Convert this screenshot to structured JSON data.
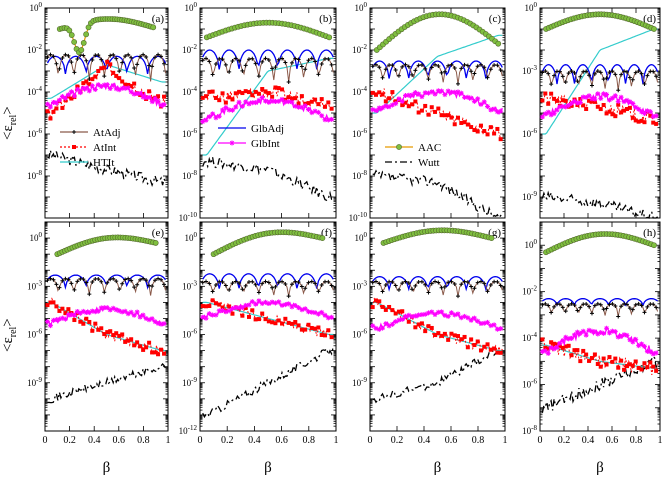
{
  "figure": {
    "ylabel_main": "<ε",
    "ylabel_sub": "rel",
    "ylabel_end": ">",
    "xlabel": "β"
  },
  "legend": [
    {
      "panel": "a",
      "label": "AtAdj",
      "color": "#8b5a4a",
      "dash": "solid",
      "marker": "plus"
    },
    {
      "panel": "a",
      "label": "AtInt",
      "color": "#ff0000",
      "dash": "dotted",
      "marker": "square"
    },
    {
      "panel": "a",
      "label": "HTIt",
      "color": "#33cccc",
      "dash": "solid",
      "marker": "none"
    },
    {
      "panel": "b",
      "label": "GlbAdj",
      "color": "#0000ee",
      "dash": "solid",
      "marker": "none"
    },
    {
      "panel": "b",
      "label": "GlbInt",
      "color": "#ff00ff",
      "dash": "solid",
      "marker": "star"
    },
    {
      "panel": "c",
      "label": "AAC",
      "color": "#e69a00",
      "dash": "solid",
      "marker": "circle"
    },
    {
      "panel": "c",
      "label": "Wutt",
      "color": "#000000",
      "dash": "dashdot",
      "marker": "none"
    }
  ],
  "chart_data": [
    {
      "panel": "a",
      "label": "(a)",
      "type": "line",
      "yscale": "log",
      "xlim": [
        0,
        1
      ],
      "ylim": [
        1e-10,
        1
      ],
      "xticks": [
        "0",
        "0.2",
        "0.4",
        "0.6",
        "0.8",
        "1"
      ],
      "yticks": [
        {
          "v": 1,
          "t": "10^0"
        },
        {
          "v": 0.01,
          "t": "10^-2"
        },
        {
          "v": 0.0001,
          "t": "10^-4"
        },
        {
          "v": 1e-06,
          "t": "10^-6"
        },
        {
          "v": 1e-08,
          "t": "10^-8"
        }
      ],
      "series": {
        "AAC": {
          "x": [
            0.12,
            0.88
          ],
          "y": [
            0.1,
            0.12
          ],
          "dip": [
            0.28,
            0.004
          ],
          "peak": [
            0.5,
            0.3
          ]
        },
        "GlbAdj": {
          "base": 0.005,
          "osc": 6,
          "min": 0.0004
        },
        "AtAdj": {
          "base": 0.006,
          "osc": 8,
          "min": 0.0001
        },
        "AtInt": {
          "x": [
            0.05,
            0.5,
            0.95
          ],
          "y": [
            1e-05,
            0.0015,
            3e-05
          ]
        },
        "HTIt": {
          "x": [
            0.05,
            0.5,
            0.95
          ],
          "y": [
            5e-05,
            0.002,
            0.0003
          ]
        },
        "GlbInt": {
          "x": [
            0.05,
            0.5,
            0.95
          ],
          "y": [
            0.0001,
            0.0001,
            0.0001
          ]
        },
        "Wutt": {
          "x": [
            0.05,
            0.5,
            0.95
          ],
          "y": [
            1e-07,
            2e-08,
            5e-09
          ]
        }
      }
    },
    {
      "panel": "b",
      "label": "(b)",
      "type": "line",
      "yscale": "log",
      "xlim": [
        0,
        1
      ],
      "ylim": [
        1e-10,
        1
      ],
      "xticks": [
        "0",
        "0.2",
        "0.4",
        "0.6",
        "0.8",
        "1"
      ],
      "yticks": [
        {
          "v": 1,
          "t": "10^0"
        },
        {
          "v": 0.01,
          "t": "10^-2"
        },
        {
          "v": 0.0001,
          "t": "10^-4"
        },
        {
          "v": 1e-06,
          "t": "10^-6"
        },
        {
          "v": 1e-08,
          "t": "10^-8"
        },
        {
          "v": 1e-10,
          "t": "10^-10"
        }
      ],
      "series": {
        "AAC": {
          "x": [
            0.05,
            0.95
          ],
          "y": [
            0.04,
            0.04
          ],
          "dip": [
            0,
            0
          ],
          "peak": [
            0.5,
            0.2
          ]
        },
        "GlbAdj": {
          "base": 0.01,
          "osc": 7,
          "min": 0.0005
        },
        "AtAdj": {
          "base": 0.004,
          "osc": 9,
          "min": 0.0001
        },
        "AtInt": {
          "x": [
            0.05,
            0.5,
            0.95
          ],
          "y": [
            5e-05,
            0.0001,
            3e-05
          ]
        },
        "HTIt": {
          "x": [
            0.05,
            0.5,
            0.95
          ],
          "y": [
            1e-07,
            0.001,
            0.004
          ]
        },
        "GlbInt": {
          "x": [
            0.05,
            0.5,
            0.95
          ],
          "y": [
            2e-05,
            2e-05,
            2e-05
          ]
        },
        "Wutt": {
          "x": [
            0.05,
            0.5,
            0.95
          ],
          "y": [
            5e-08,
            2e-08,
            1e-09
          ]
        }
      }
    },
    {
      "panel": "c",
      "label": "(c)",
      "type": "line",
      "yscale": "log",
      "xlim": [
        0,
        1
      ],
      "ylim": [
        1e-10,
        1
      ],
      "xticks": [
        "0",
        "0.2",
        "0.4",
        "0.6",
        "0.8",
        "1"
      ],
      "yticks": [
        {
          "v": 1,
          "t": "10^0"
        },
        {
          "v": 0.01,
          "t": "10^-2"
        },
        {
          "v": 0.0001,
          "t": "10^-4"
        },
        {
          "v": 1e-06,
          "t": "10^-6"
        },
        {
          "v": 1e-08,
          "t": "10^-8"
        },
        {
          "v": 1e-10,
          "t": "10^-10"
        }
      ],
      "series": {
        "AAC": {
          "x": [
            0.05,
            0.95
          ],
          "y": [
            0.01,
            0.02
          ],
          "dip": [
            0,
            0
          ],
          "peak": [
            0.5,
            0.5
          ]
        },
        "GlbAdj": {
          "base": 0.003,
          "osc": 7,
          "min": 0.0002
        },
        "AtAdj": {
          "base": 0.002,
          "osc": 9,
          "min": 0.0001
        },
        "AtInt": {
          "x": [
            0.05,
            0.5,
            0.95
          ],
          "y": [
            0.0001,
            1e-05,
            1e-06
          ]
        },
        "HTIt": {
          "x": [
            0.05,
            0.5,
            0.95
          ],
          "y": [
            1e-05,
            0.005,
            0.05
          ]
        },
        "GlbInt": {
          "x": [
            0.05,
            0.5,
            0.95
          ],
          "y": [
            5e-05,
            5e-05,
            5e-05
          ]
        },
        "Wutt": {
          "x": [
            0.05,
            0.5,
            0.95
          ],
          "y": [
            1e-08,
            5e-09,
            1e-10
          ]
        }
      }
    },
    {
      "panel": "d",
      "label": "(d)",
      "type": "line",
      "yscale": "log",
      "xlim": [
        0,
        1
      ],
      "ylim": [
        1e-10,
        1
      ],
      "xticks": [
        "0",
        "0.2",
        "0.4",
        "0.6",
        "0.8",
        "1"
      ],
      "yticks": [
        {
          "v": 1,
          "t": "10^0"
        },
        {
          "v": 0.001,
          "t": "10^-3"
        },
        {
          "v": 1e-06,
          "t": "10^-6"
        },
        {
          "v": 1e-09,
          "t": "10^-9"
        }
      ],
      "series": {
        "AAC": {
          "x": [
            0.05,
            0.95
          ],
          "y": [
            0.1,
            0.1
          ],
          "dip": [
            0,
            0
          ],
          "peak": [
            0.5,
            0.5
          ]
        },
        "GlbAdj": {
          "base": 0.002,
          "osc": 7,
          "min": 0.0001
        },
        "AtAdj": {
          "base": 0.001,
          "osc": 9,
          "min": 5e-05
        },
        "AtInt": {
          "x": [
            0.05,
            0.5,
            0.95
          ],
          "y": [
            5e-05,
            2e-05,
            5e-06
          ]
        },
        "HTIt": {
          "x": [
            0.05,
            0.5,
            0.95
          ],
          "y": [
            1e-06,
            0.01,
            0.1
          ]
        },
        "GlbInt": {
          "x": [
            0.05,
            0.5,
            0.95
          ],
          "y": [
            3e-05,
            3e-05,
            3e-05
          ]
        },
        "Wutt": {
          "x": [
            0.05,
            0.5,
            0.95
          ],
          "y": [
            1e-09,
            5e-10,
            1e-10
          ]
        }
      }
    },
    {
      "panel": "e",
      "label": "(e)",
      "type": "line",
      "yscale": "log",
      "xlim": [
        0,
        1
      ],
      "ylim": [
        1e-12,
        10
      ],
      "xticks": [
        "0",
        "0.2",
        "0.4",
        "0.6",
        "0.8",
        "1"
      ],
      "yticks": [
        {
          "v": 1,
          "t": "10^0"
        },
        {
          "v": 0.001,
          "t": "10^-3"
        },
        {
          "v": 1e-06,
          "t": "10^-6"
        },
        {
          "v": 1e-09,
          "t": "10^-9"
        }
      ],
      "series": {
        "AAC": {
          "x": [
            0.1,
            0.9
          ],
          "y": [
            0.1,
            0.5
          ],
          "dip": [
            0,
            0
          ],
          "peak": [
            0.5,
            1
          ]
        },
        "GlbAdj": {
          "base": 0.005,
          "osc": 6,
          "min": 0.0005
        },
        "AtAdj": {
          "base": 0.003,
          "osc": 8,
          "min": 0.0001
        },
        "AtInt": {
          "x": [
            0.05,
            0.5,
            0.95
          ],
          "y": [
            0.0001,
            1e-06,
            1e-07
          ]
        },
        "HTIt": {
          "x": [
            0.05,
            0.5,
            0.95
          ],
          "y": [
            0.0001,
            1e-06,
            1e-07
          ]
        },
        "GlbInt": {
          "x": [
            0.05,
            0.5,
            0.95
          ],
          "y": [
            2e-05,
            2e-05,
            2e-05
          ]
        },
        "Wutt": {
          "x": [
            0.05,
            0.5,
            0.95
          ],
          "y": [
            1e-10,
            1e-09,
            1e-08
          ]
        }
      }
    },
    {
      "panel": "f",
      "label": "(f)",
      "type": "line",
      "yscale": "log",
      "xlim": [
        0,
        1
      ],
      "ylim": [
        1e-12,
        10
      ],
      "xticks": [
        "0",
        "0.2",
        "0.4",
        "0.6",
        "0.8",
        "1"
      ],
      "yticks": [
        {
          "v": 1,
          "t": "10^0"
        },
        {
          "v": 0.001,
          "t": "10^-3"
        },
        {
          "v": 1e-06,
          "t": "10^-6"
        },
        {
          "v": 1e-09,
          "t": "10^-9"
        },
        {
          "v": 1e-12,
          "t": "10^-12"
        }
      ],
      "series": {
        "AAC": {
          "x": [
            0.1,
            0.9
          ],
          "y": [
            0.1,
            1
          ],
          "dip": [
            0,
            0
          ],
          "peak": [
            0.5,
            2
          ]
        },
        "GlbAdj": {
          "base": 0.006,
          "osc": 7,
          "min": 0.0003
        },
        "AtAdj": {
          "base": 0.002,
          "osc": 9,
          "min": 0.0001
        },
        "AtInt": {
          "x": [
            0.05,
            0.5,
            0.95
          ],
          "y": [
            0.0001,
            1e-05,
            1e-06
          ]
        },
        "HTIt": {
          "x": [
            0.05,
            0.5,
            0.95
          ],
          "y": [
            0.0001,
            1e-05,
            1e-06
          ]
        },
        "GlbInt": {
          "x": [
            0.05,
            0.5,
            0.95
          ],
          "y": [
            5e-05,
            5e-05,
            5e-05
          ]
        },
        "Wutt": {
          "x": [
            0.05,
            0.5,
            0.95
          ],
          "y": [
            1e-11,
            1e-09,
            1e-07
          ]
        }
      }
    },
    {
      "panel": "g",
      "label": "(g)",
      "type": "line",
      "yscale": "log",
      "xlim": [
        0,
        1
      ],
      "ylim": [
        1e-12,
        10
      ],
      "xticks": [
        "0",
        "0.2",
        "0.4",
        "0.6",
        "0.8",
        "1"
      ],
      "yticks": [
        {
          "v": 1,
          "t": "10^0"
        },
        {
          "v": 0.001,
          "t": "10^-3"
        },
        {
          "v": 1e-06,
          "t": "10^-6"
        },
        {
          "v": 1e-09,
          "t": "10^-9"
        }
      ],
      "series": {
        "AAC": {
          "x": [
            0.1,
            0.9
          ],
          "y": [
            0.5,
            1
          ],
          "dip": [
            0,
            0
          ],
          "peak": [
            0.5,
            3
          ]
        },
        "GlbAdj": {
          "base": 0.004,
          "osc": 7,
          "min": 0.0003
        },
        "AtAdj": {
          "base": 0.002,
          "osc": 9,
          "min": 0.0001
        },
        "AtInt": {
          "x": [
            0.05,
            0.5,
            0.95
          ],
          "y": [
            0.0001,
            1e-06,
            1e-07
          ]
        },
        "HTIt": {
          "x": [
            0.05,
            0.5,
            0.95
          ],
          "y": [
            0.0001,
            1e-06,
            1e-07
          ]
        },
        "GlbInt": {
          "x": [
            0.05,
            0.5,
            0.95
          ],
          "y": [
            1e-05,
            1e-05,
            1e-05
          ]
        },
        "Wutt": {
          "x": [
            0.05,
            0.5,
            0.95
          ],
          "y": [
            1e-10,
            1e-09,
            1e-07
          ]
        }
      }
    },
    {
      "panel": "h",
      "label": "(h)",
      "type": "line",
      "yscale": "log",
      "xlim": [
        0,
        1
      ],
      "ylim": [
        1e-08,
        10
      ],
      "xticks": [
        "0",
        "0.2",
        "0.4",
        "0.6",
        "0.8",
        "1"
      ],
      "yticks": [
        {
          "v": 1,
          "t": "10^0"
        },
        {
          "v": 0.01,
          "t": "10^-2"
        },
        {
          "v": 0.0001,
          "t": "10^-4"
        },
        {
          "v": 1e-06,
          "t": "10^-6"
        },
        {
          "v": 1e-08,
          "t": "10^-8"
        }
      ],
      "series": {
        "AAC": {
          "x": [
            0.05,
            0.95
          ],
          "y": [
            0.5,
            1
          ],
          "dip": [
            0,
            0
          ],
          "peak": [
            0.5,
            3
          ]
        },
        "GlbAdj": {
          "base": 0.005,
          "osc": 7,
          "min": 0.002
        },
        "AtAdj": {
          "base": 0.003,
          "osc": 9,
          "min": 0.0005
        },
        "AtInt": {
          "x": [
            0.05,
            0.5,
            0.95
          ],
          "y": [
            5e-05,
            1e-05,
            5e-06
          ]
        },
        "HTIt": {
          "x": [
            0.05,
            0.5,
            0.95
          ],
          "y": [
            5e-05,
            1e-05,
            5e-06
          ]
        },
        "GlbInt": {
          "x": [
            0.05,
            0.5,
            0.95
          ],
          "y": [
            0.0001,
            0.0001,
            0.0001
          ]
        },
        "Wutt": {
          "x": [
            0.05,
            0.5,
            0.95
          ],
          "y": [
            1e-07,
            1e-06,
            1e-05
          ]
        }
      }
    }
  ]
}
